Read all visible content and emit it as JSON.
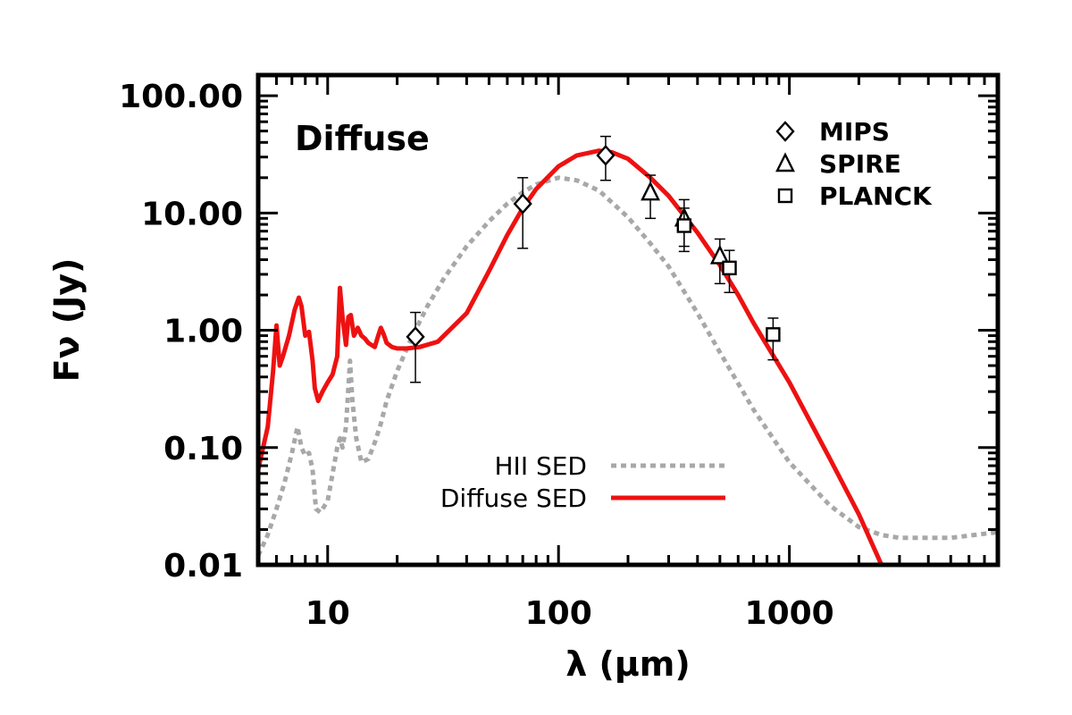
{
  "chart_data": {
    "type": "line",
    "title": "",
    "panel_label": "Diffuse",
    "xlabel": "λ (μm)",
    "ylabel": "Fν (Jy)",
    "xscale": "log",
    "yscale": "log",
    "xlim": [
      5,
      8000
    ],
    "ylim": [
      0.01,
      150
    ],
    "xticks": [
      {
        "value": 10,
        "label": "10"
      },
      {
        "value": 100,
        "label": "100"
      },
      {
        "value": 1000,
        "label": "1000"
      }
    ],
    "yticks": [
      {
        "value": 0.01,
        "label": "0.01"
      },
      {
        "value": 0.1,
        "label": "0.10"
      },
      {
        "value": 1,
        "label": "1.00"
      },
      {
        "value": 10,
        "label": "10.00"
      },
      {
        "value": 100,
        "label": "100.00"
      }
    ],
    "series": [
      {
        "name": "HII SED",
        "style": "dotted",
        "color": "#a8a8a8",
        "x": [
          5,
          5.5,
          6,
          6.5,
          7,
          7.4,
          7.7,
          8,
          8.3,
          8.6,
          8.9,
          9.3,
          10,
          11,
          11.3,
          11.6,
          12,
          12.5,
          12.8,
          13.3,
          14,
          15,
          16,
          17,
          18,
          20,
          23,
          27,
          32,
          40,
          50,
          60,
          70,
          80,
          100,
          120,
          150,
          200,
          250,
          300,
          400,
          500,
          700,
          1000,
          1500,
          2000,
          2500,
          3000,
          4000,
          5000,
          8000
        ],
        "y": [
          0.012,
          0.018,
          0.03,
          0.05,
          0.09,
          0.15,
          0.1,
          0.085,
          0.09,
          0.065,
          0.03,
          0.028,
          0.035,
          0.1,
          0.12,
          0.1,
          0.15,
          0.55,
          0.25,
          0.12,
          0.075,
          0.08,
          0.11,
          0.16,
          0.25,
          0.45,
          0.85,
          1.6,
          2.8,
          5.2,
          8.5,
          12,
          15,
          17.5,
          20,
          19,
          15.5,
          9.2,
          5.5,
          3.5,
          1.4,
          0.65,
          0.21,
          0.075,
          0.032,
          0.021,
          0.018,
          0.017,
          0.017,
          0.017,
          0.019
        ]
      },
      {
        "name": "Diffuse SED",
        "style": "solid",
        "color": "#ee1111",
        "x": [
          5,
          5.5,
          5.8,
          6.0,
          6.2,
          6.4,
          6.8,
          7.2,
          7.5,
          7.7,
          8.0,
          8.3,
          8.6,
          8.8,
          9.1,
          9.5,
          10,
          10.5,
          11,
          11.3,
          11.6,
          12,
          12.3,
          12.6,
          13.0,
          13.5,
          14,
          14.5,
          15,
          16,
          16.5,
          17,
          17.5,
          18,
          19,
          20,
          22,
          25,
          30,
          40,
          50,
          60,
          70,
          80,
          100,
          120,
          150,
          170,
          200,
          250,
          300,
          400,
          500,
          600,
          700,
          1000,
          1500,
          2000,
          2600
        ],
        "y": [
          0.065,
          0.15,
          0.45,
          1.1,
          0.5,
          0.6,
          0.9,
          1.5,
          1.9,
          1.6,
          0.9,
          0.97,
          0.55,
          0.32,
          0.25,
          0.3,
          0.36,
          0.42,
          0.6,
          2.3,
          1.3,
          0.75,
          1.3,
          1.35,
          0.9,
          1.05,
          0.9,
          0.85,
          0.78,
          0.72,
          0.88,
          1.05,
          0.92,
          0.78,
          0.72,
          0.7,
          0.7,
          0.72,
          0.8,
          1.4,
          3.2,
          6.5,
          11,
          16,
          25,
          31,
          34,
          33,
          29,
          20,
          14,
          6.8,
          3.6,
          2.0,
          1.15,
          0.36,
          0.08,
          0.027,
          0.0085
        ]
      }
    ],
    "observations": [
      {
        "name": "MIPS",
        "marker": "diamond",
        "points": [
          {
            "x": 24,
            "y": 0.88,
            "ylow": 0.36,
            "yhigh": 1.42
          },
          {
            "x": 70,
            "y": 12,
            "ylow": 5,
            "yhigh": 20
          },
          {
            "x": 160,
            "y": 31,
            "ylow": 19,
            "yhigh": 45
          }
        ]
      },
      {
        "name": "SPIRE",
        "marker": "triangle",
        "points": [
          {
            "x": 250,
            "y": 15,
            "ylow": 9,
            "yhigh": 21
          },
          {
            "x": 350,
            "y": 9,
            "ylow": 5.2,
            "yhigh": 13
          },
          {
            "x": 500,
            "y": 4.3,
            "ylow": 2.5,
            "yhigh": 6
          }
        ]
      },
      {
        "name": "PLANCK",
        "marker": "square",
        "points": [
          {
            "x": 350,
            "y": 7.8,
            "ylow": 4.7,
            "yhigh": 11
          },
          {
            "x": 550,
            "y": 3.4,
            "ylow": 2.1,
            "yhigh": 4.8
          },
          {
            "x": 850,
            "y": 0.92,
            "ylow": 0.56,
            "yhigh": 1.27
          }
        ]
      }
    ],
    "legend": {
      "placement": "top-right",
      "line_legend_placement": "bottom-center"
    },
    "grid": false
  }
}
